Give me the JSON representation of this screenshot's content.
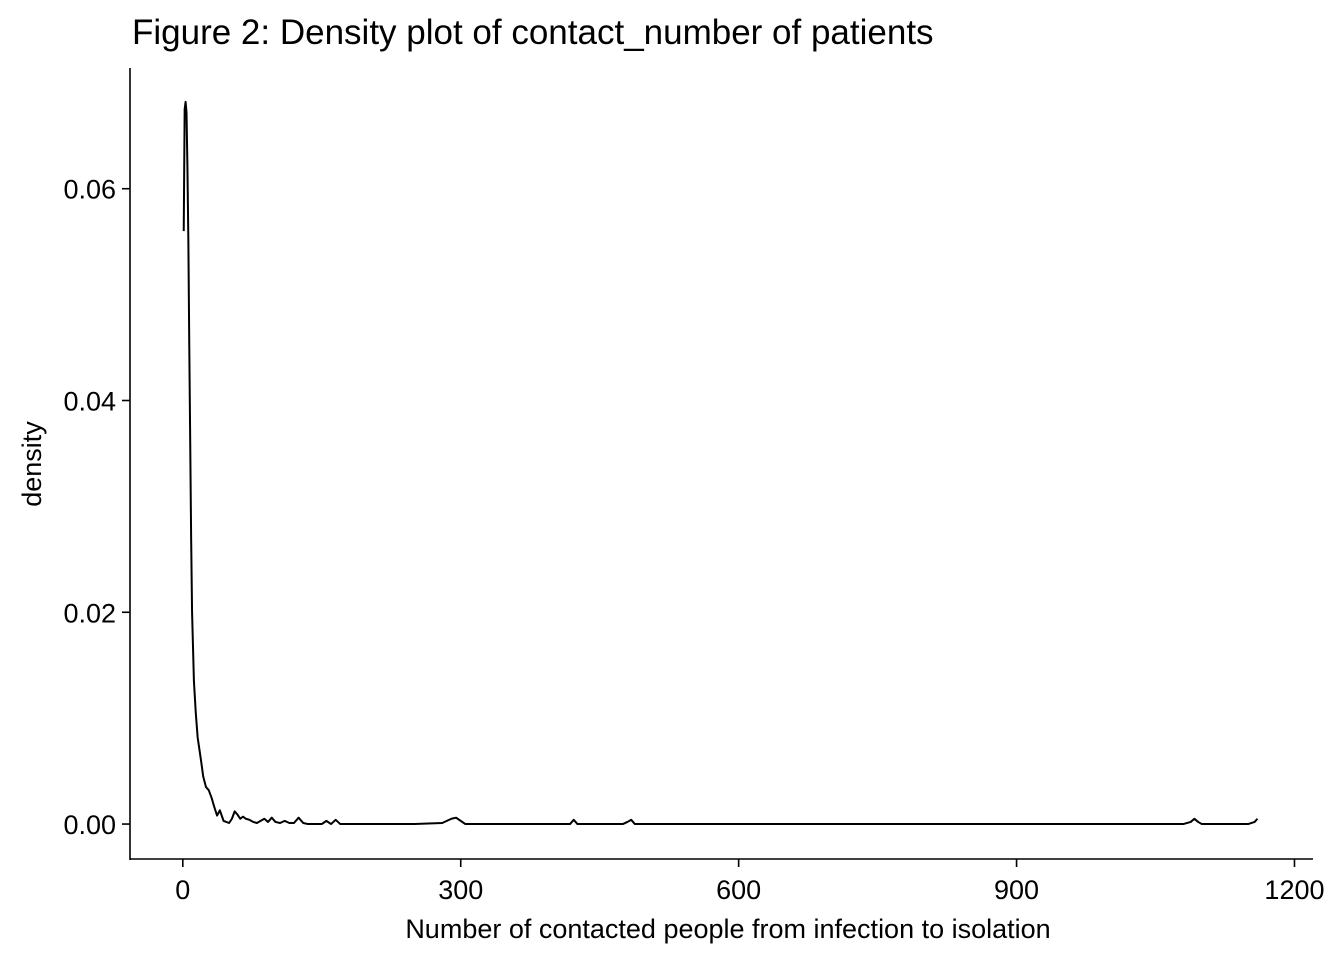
{
  "chart_data": {
    "type": "line",
    "title": "Figure 2: Density plot of contact_number of patients",
    "xlabel": "Number of contacted people from infection to isolation",
    "ylabel": "density",
    "xlim": [
      -57,
      1220
    ],
    "ylim": [
      -0.0033,
      0.0714
    ],
    "x_ticks": [
      0,
      300,
      600,
      900,
      1200
    ],
    "x_tick_labels": [
      "0",
      "300",
      "600",
      "900",
      "1200"
    ],
    "y_ticks": [
      0,
      0.02,
      0.04,
      0.06
    ],
    "y_tick_labels": [
      "0.00",
      "0.02",
      "0.04",
      "0.06"
    ],
    "grid": false,
    "legend": "none",
    "line_color": "#000000",
    "series": [
      {
        "x": [
          1,
          2,
          3,
          4,
          5,
          6,
          7,
          8,
          9,
          10,
          12,
          14,
          16,
          18,
          20,
          22,
          25,
          28,
          31,
          34,
          37,
          40,
          44,
          47,
          50,
          53,
          56,
          59,
          62,
          65,
          68,
          72,
          76,
          80,
          84,
          88,
          92,
          96,
          100,
          105,
          110,
          115,
          120,
          125,
          130,
          135,
          140,
          150,
          155,
          160,
          165,
          170,
          175,
          180,
          200,
          250,
          280,
          290,
          295,
          300,
          305,
          320,
          400,
          418,
          422,
          426,
          440,
          475,
          480,
          484,
          488,
          500,
          700,
          900,
          1080,
          1088,
          1092,
          1096,
          1100,
          1110,
          1150,
          1157,
          1160
        ],
        "y": [
          0.056,
          0.0675,
          0.0682,
          0.0672,
          0.062,
          0.055,
          0.045,
          0.036,
          0.027,
          0.02,
          0.0135,
          0.0105,
          0.0082,
          0.007,
          0.0058,
          0.0045,
          0.0035,
          0.0032,
          0.0025,
          0.0016,
          0.0008,
          0.0013,
          0.0003,
          0.0002,
          0.0001,
          0.0005,
          0.0012,
          0.0009,
          0.0005,
          0.0007,
          0.0005,
          0.0004,
          0.0002,
          0.0001,
          0.0003,
          0.0005,
          0.0002,
          0.0006,
          0.0002,
          0.0001,
          0.0003,
          0.0001,
          0.0001,
          0.0006,
          0.0001,
          0.0,
          0.0,
          0.0,
          0.0003,
          0.0,
          0.0004,
          0.0,
          0.0,
          0.0,
          0.0,
          0.0,
          0.0001,
          0.0005,
          0.0006,
          0.0003,
          0.0,
          0.0,
          0.0,
          0.0,
          0.0004,
          0.0,
          0.0,
          0.0,
          0.0002,
          0.0004,
          0.0,
          0.0,
          0.0,
          0.0,
          0.0,
          0.0002,
          0.0005,
          0.0002,
          0.0,
          0.0,
          0.0,
          0.0002,
          0.0005
        ]
      }
    ]
  }
}
